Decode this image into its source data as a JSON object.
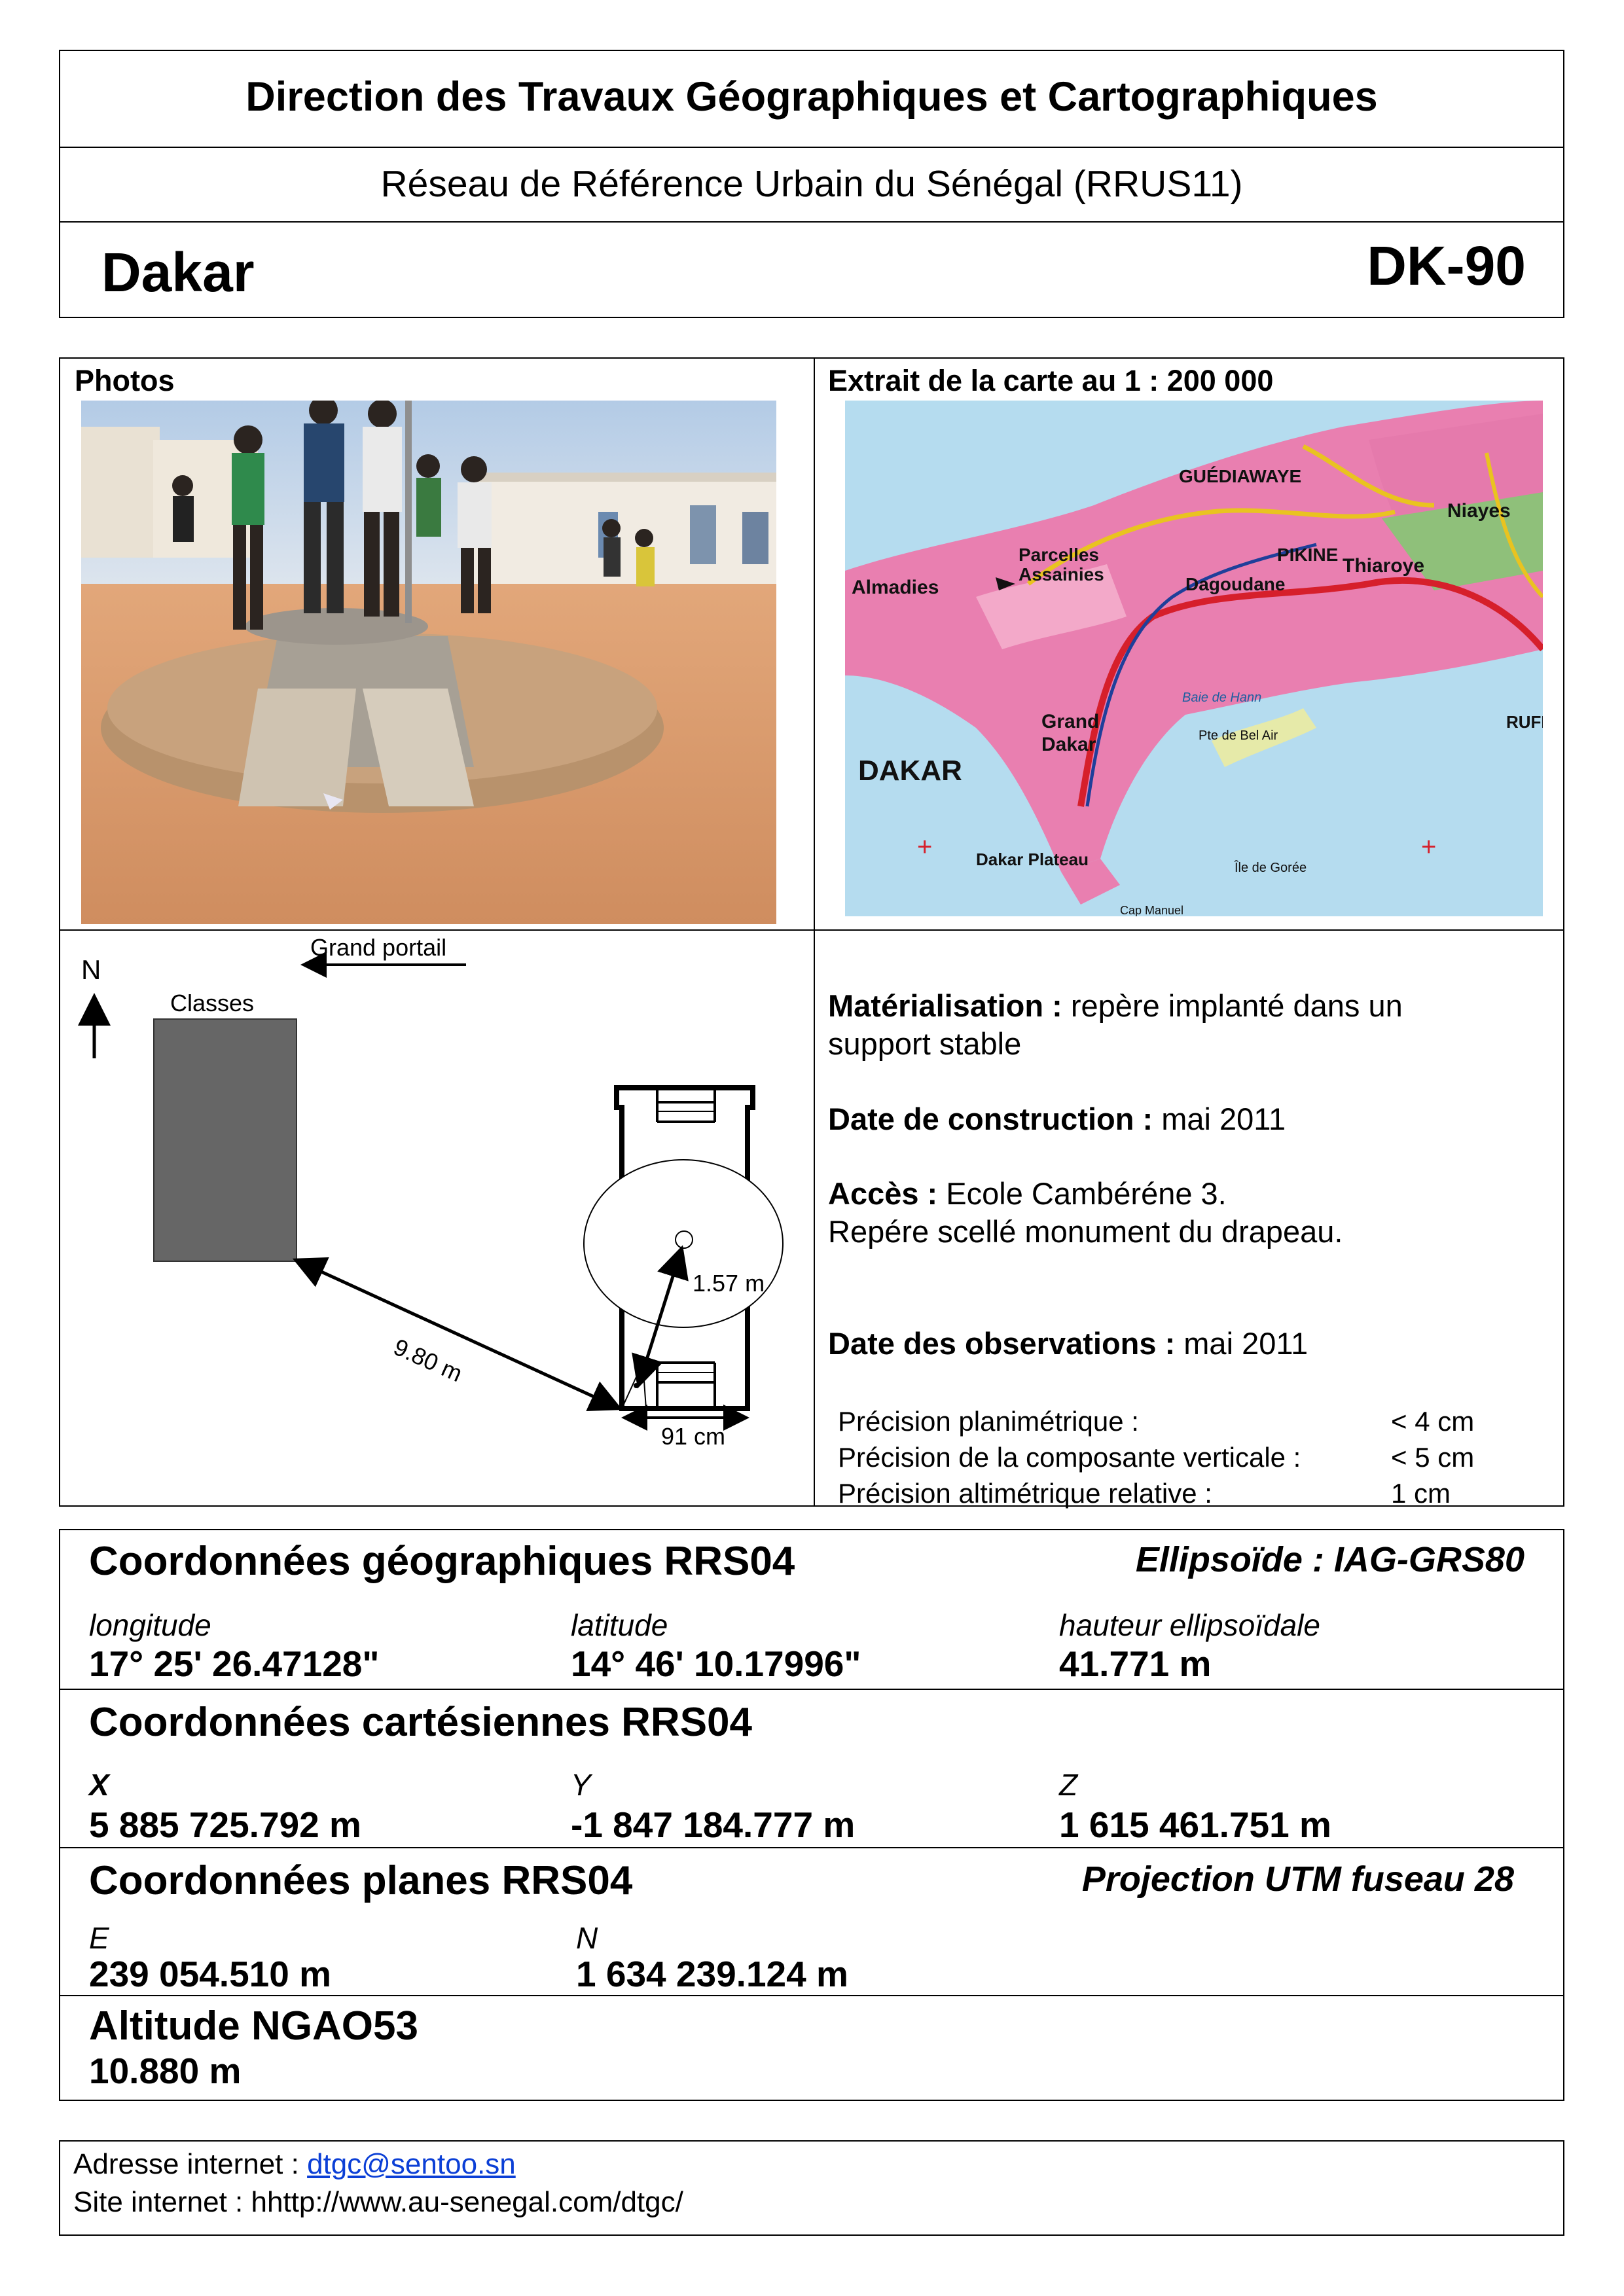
{
  "header": {
    "organization": "Direction des Travaux Géographiques et Cartographiques",
    "network": "Réseau de Référence Urbain du Sénégal (RRUS11)",
    "city": "Dakar",
    "station_code": "DK-90"
  },
  "photos": {
    "label": "Photos"
  },
  "map": {
    "label": "Extrait de la carte au 1 : 200 000",
    "places": [
      "GUÉDIAWAYE",
      "Niayes",
      "Parcelles Assainies",
      "PIKINE",
      "Thiaroye",
      "Almadies",
      "Dagoudane",
      "Grand Dakar",
      "DAKAR",
      "Dakar Plateau",
      "Pte de Bel Air",
      "Île de Gorée",
      "Baie de Hann",
      "Cap Manuel",
      "RUFI"
    ],
    "colors": {
      "sea": "#b5dcef",
      "urban": "#e97fb0",
      "road": "#d61f2b",
      "highway": "#e9c320",
      "park": "#8fc07a"
    }
  },
  "sketch": {
    "north": "N",
    "gate": "Grand portail",
    "building": "Classes",
    "dist_building": "9.80 m",
    "dist_center": "1.57 m",
    "dist_width": "91 cm"
  },
  "info": {
    "mat_label": "Matérialisation :",
    "mat_value": "repère implanté dans un",
    "mat_value2": "support stable",
    "date_label": "Date de construction :",
    "date_value": "mai 2011",
    "access_label": "Accès :",
    "access_value": "Ecole Cambéréne 3.",
    "access_value2": "Repére scellé monument du drapeau.",
    "obs_label": "Date des observations :",
    "obs_value": "mai 2011",
    "precisions": [
      {
        "label": "Précision planimétrique :",
        "value": "< 4 cm"
      },
      {
        "label": "Précision de la composante verticale :",
        "value": "< 5 cm"
      },
      {
        "label": "Précision altimétrique relative :",
        "value": "1 cm"
      }
    ]
  },
  "geo": {
    "title": "Coordonnées géographiques RRS04",
    "ellipsoid": "Ellipsoïde : IAG-GRS80",
    "labels": [
      "longitude",
      "latitude",
      "hauteur ellipsoïdale"
    ],
    "values": [
      "17° 25' 26.47128\"",
      "14° 46' 10.17996\"",
      "41.771 m"
    ]
  },
  "cart": {
    "title": "Coordonnées cartésiennes RRS04",
    "labels": [
      "X",
      "Y",
      "Z"
    ],
    "values": [
      "5 885 725.792 m",
      "-1 847 184.777 m",
      "1 615 461.751 m"
    ]
  },
  "plane": {
    "title": "Coordonnées planes RRS04",
    "projection": "Projection UTM fuseau 28",
    "labels": [
      "E",
      "N"
    ],
    "values": [
      "239 054.510 m",
      "1 634 239.124 m"
    ]
  },
  "alt": {
    "title": "Altitude NGAO53",
    "value": "10.880 m"
  },
  "footer": {
    "email_label": "Adresse internet :",
    "email": "dtgc@sentoo.sn",
    "site_label": "Site internet :",
    "site": "hhttp://www.au-senegal.com/dtgc/"
  }
}
